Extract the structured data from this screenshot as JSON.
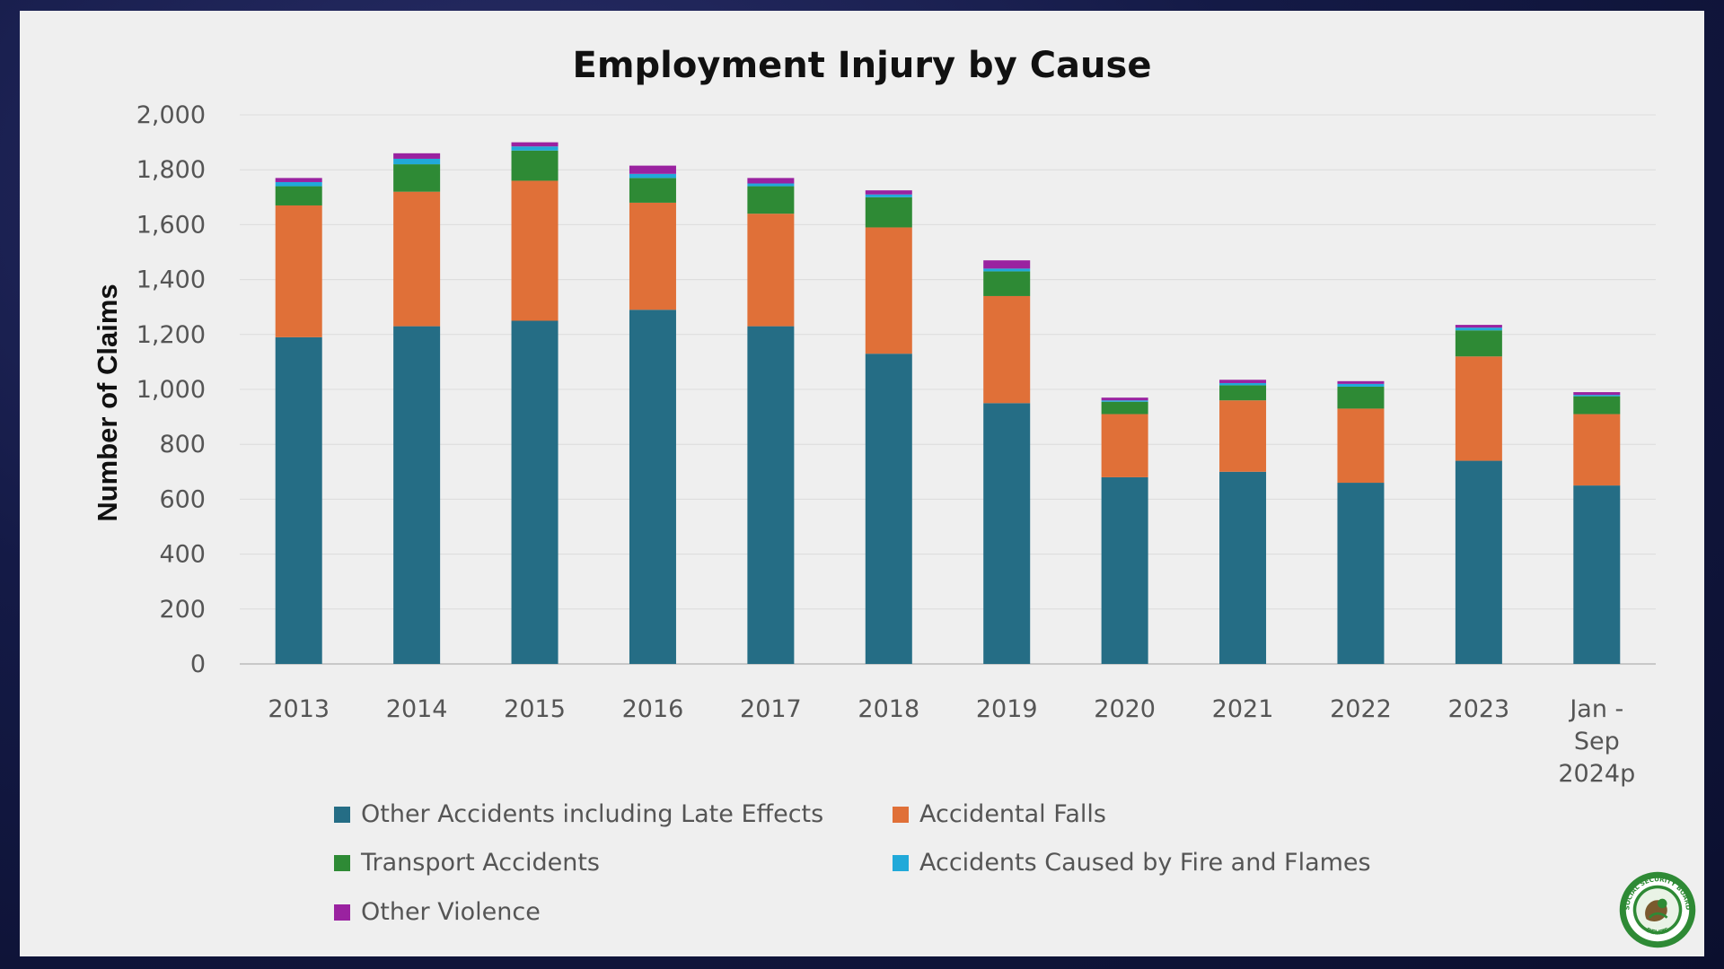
{
  "chart_data": {
    "type": "bar",
    "stacked": true,
    "title": "Employment Injury by Cause",
    "xlabel": "",
    "ylabel": "Number of Claims",
    "ylim": [
      0,
      2000
    ],
    "yticks": [
      "0",
      "200",
      "400",
      "600",
      "800",
      "1,000",
      "1,200",
      "1,400",
      "1,600",
      "1,800",
      "2,000"
    ],
    "grid": true,
    "legend_position": "bottom",
    "categories": [
      "2013",
      "2014",
      "2015",
      "2016",
      "2017",
      "2018",
      "2019",
      "2020",
      "2021",
      "2022",
      "2023",
      "Jan - Sep 2024p"
    ],
    "series": [
      {
        "name": "Other Accidents including Late Effects",
        "color": "#256d85",
        "values": [
          1190,
          1230,
          1250,
          1290,
          1230,
          1130,
          950,
          680,
          700,
          660,
          740,
          650
        ]
      },
      {
        "name": "Accidental Falls",
        "color": "#e07038",
        "values": [
          480,
          490,
          510,
          390,
          410,
          460,
          390,
          230,
          260,
          270,
          380,
          260
        ]
      },
      {
        "name": "Transport Accidents",
        "color": "#2e8a35",
        "values": [
          70,
          100,
          110,
          90,
          100,
          110,
          90,
          45,
          55,
          80,
          95,
          65
        ]
      },
      {
        "name": "Accidents Caused by Fire and Flames",
        "color": "#21a9d9",
        "values": [
          15,
          20,
          15,
          15,
          10,
          10,
          10,
          5,
          8,
          10,
          10,
          5
        ]
      },
      {
        "name": "Other Violence",
        "color": "#9a22a0",
        "values": [
          15,
          20,
          15,
          30,
          20,
          15,
          30,
          10,
          12,
          10,
          10,
          10
        ]
      }
    ]
  },
  "logo": {
    "top_text": "SOCIAL SECURITY BOARD",
    "bottom_text": "BELIZE"
  }
}
